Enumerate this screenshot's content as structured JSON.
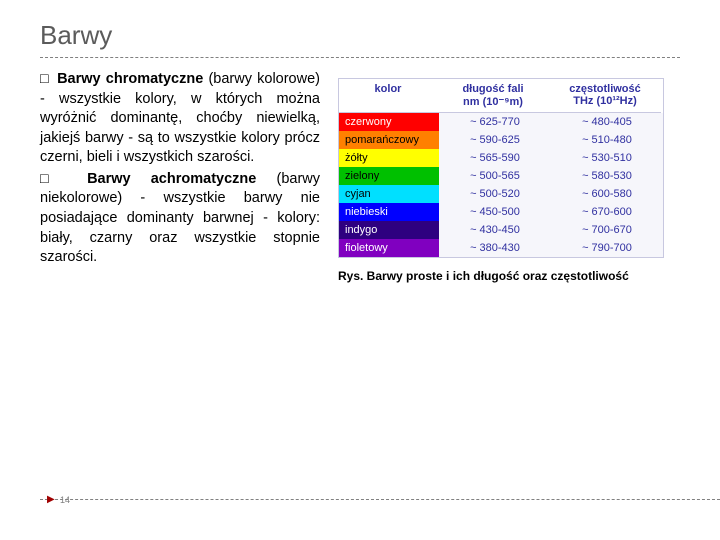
{
  "title": "Barwy",
  "bullets": [
    {
      "bold": "Barwy chromatyczne",
      "rest": " (barwy kolorowe) - wszystkie kolory, w których można wyróżnić dominantę, choćby niewielką, jakiejś barwy - są to wszystkie kolory prócz czerni, bieli i wszystkich szarości."
    },
    {
      "bold": "Barwy achromatyczne",
      "rest": " (barwy niekolorowe) - wszystkie barwy nie posiadające dominanty barwnej - kolory: biały, czarny oraz wszystkie stopnie szarości."
    }
  ],
  "table": {
    "header": {
      "name": "kolor",
      "wl_line1": "długość fali",
      "wl_line2": "nm (10⁻⁹m)",
      "freq_line1": "częstotliwość",
      "freq_line2": "THz (10¹²Hz)"
    },
    "rows": [
      {
        "name": "czerwony",
        "wl": "~ 625-770",
        "freq": "~ 480-405",
        "bg": "#ff0000",
        "fg": "#ffffff"
      },
      {
        "name": "pomarańczowy",
        "wl": "~ 590-625",
        "freq": "~ 510-480",
        "bg": "#ff8000",
        "fg": "#000000"
      },
      {
        "name": "żółty",
        "wl": "~ 565-590",
        "freq": "~ 530-510",
        "bg": "#ffff00",
        "fg": "#000000"
      },
      {
        "name": "zielony",
        "wl": "~ 500-565",
        "freq": "~ 580-530",
        "bg": "#00c000",
        "fg": "#000000"
      },
      {
        "name": "cyjan",
        "wl": "~ 500-520",
        "freq": "~ 600-580",
        "bg": "#00e0ff",
        "fg": "#000000"
      },
      {
        "name": "niebieski",
        "wl": "~ 450-500",
        "freq": "~ 670-600",
        "bg": "#0000ff",
        "fg": "#ffffff"
      },
      {
        "name": "indygo",
        "wl": "~ 430-450",
        "freq": "~ 700-670",
        "bg": "#2e0080",
        "fg": "#ffffff"
      },
      {
        "name": "fioletowy",
        "wl": "~ 380-430",
        "freq": "~ 790-700",
        "bg": "#8000c0",
        "fg": "#ffffff"
      }
    ]
  },
  "caption": "Rys. Barwy proste i ich długość oraz częstotliwość",
  "page_num": "14"
}
